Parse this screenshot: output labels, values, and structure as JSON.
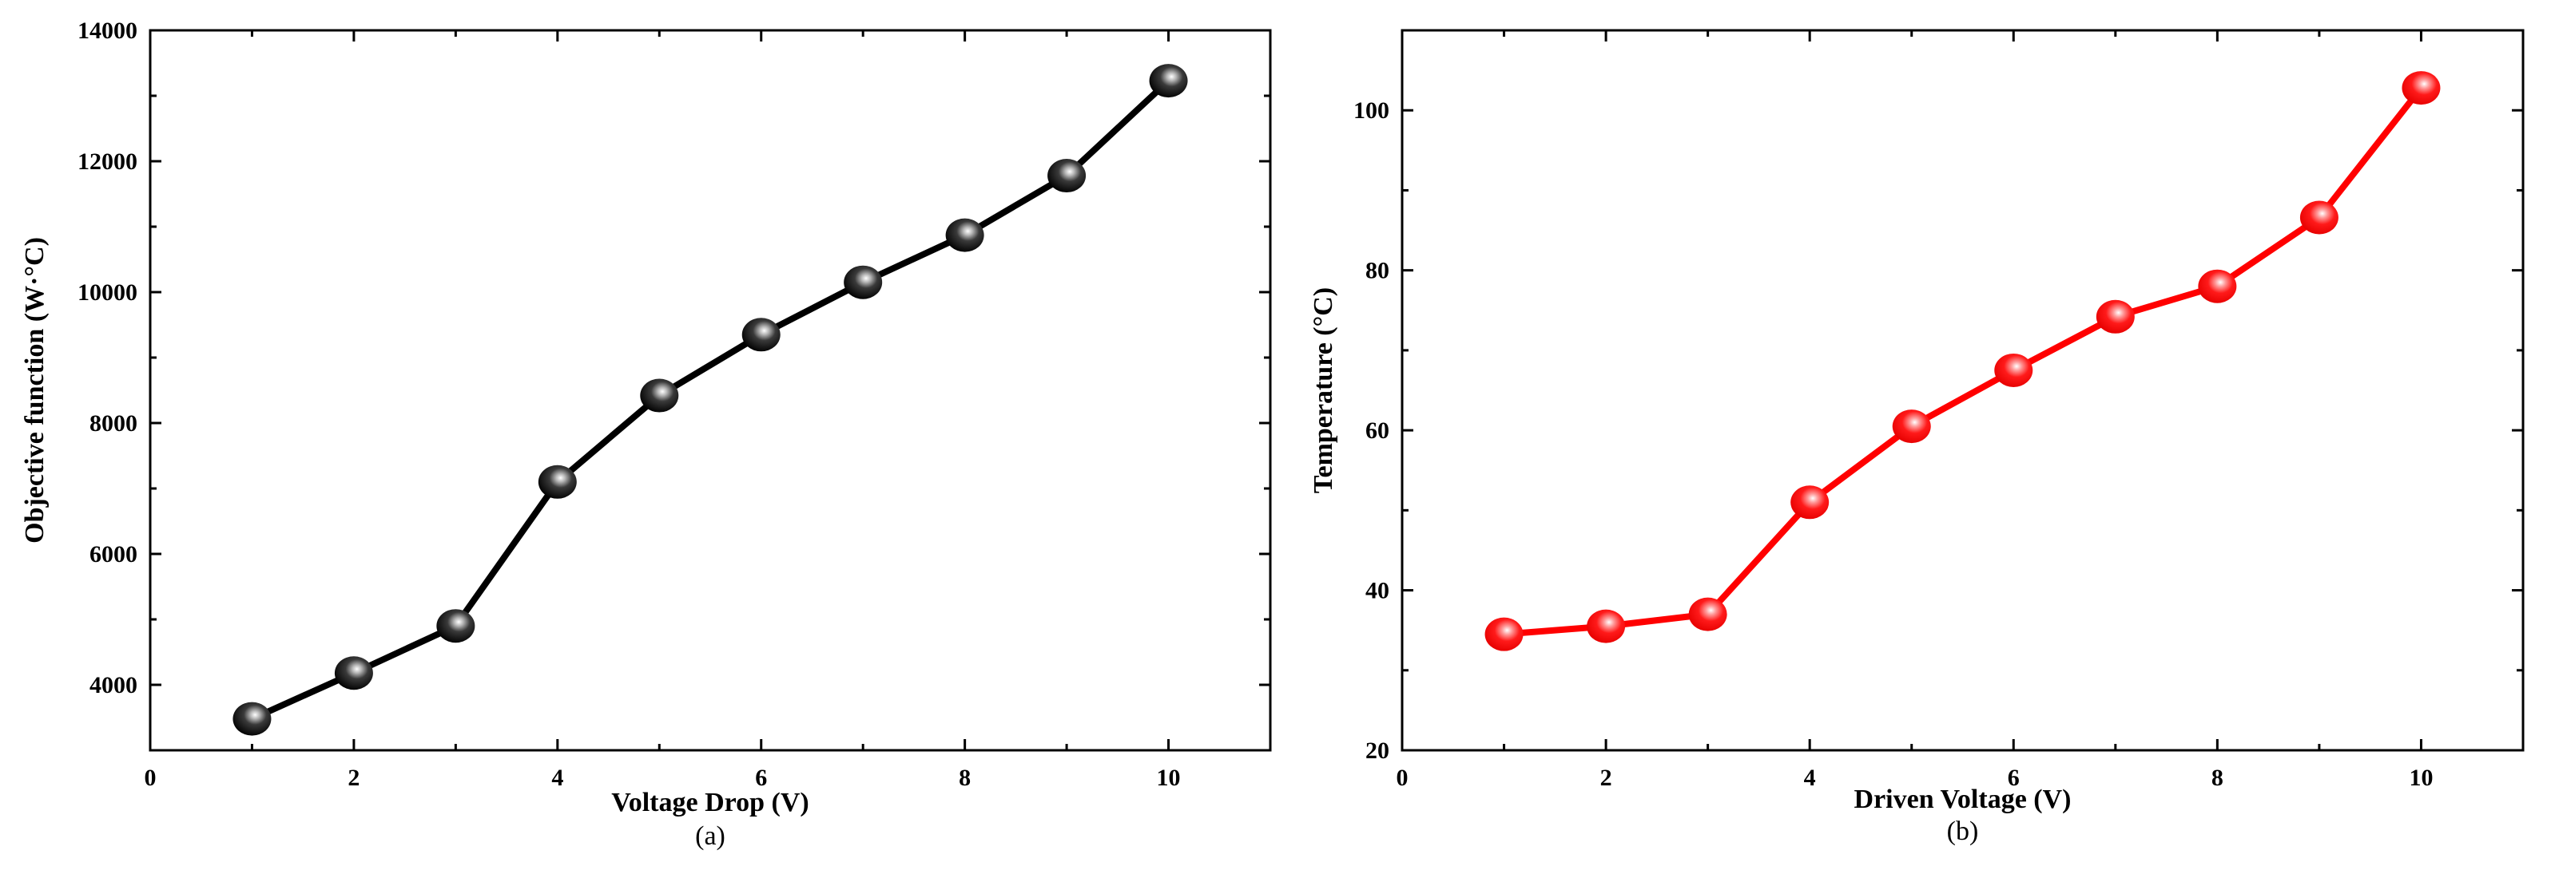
{
  "chart_data": [
    {
      "type": "line",
      "panel_label": "(a)",
      "xlabel": "Voltage Drop (V)",
      "ylabel": "Objective function (W·°C)",
      "xlim": [
        0,
        11
      ],
      "ylim": [
        3000,
        14000
      ],
      "xticks": [
        0,
        2,
        4,
        6,
        8,
        10
      ],
      "yticks": [
        4000,
        6000,
        8000,
        10000,
        12000,
        14000
      ],
      "grid": false,
      "color": "#000000",
      "series": [
        {
          "x": [
            1,
            2,
            3,
            4,
            5,
            6,
            7,
            8,
            9,
            10
          ],
          "values": [
            3480,
            4180,
            4900,
            7100,
            8420,
            9350,
            10150,
            10870,
            11780,
            13230
          ]
        }
      ]
    },
    {
      "type": "line",
      "panel_label": "(b)",
      "xlabel": "Driven Voltage (V)",
      "ylabel": "Temperature (°C)",
      "xlim": [
        0,
        11
      ],
      "ylim": [
        20,
        110
      ],
      "xticks": [
        0,
        2,
        4,
        6,
        8,
        10
      ],
      "yticks": [
        20,
        40,
        60,
        80,
        100
      ],
      "grid": false,
      "color": "#ff0000",
      "series": [
        {
          "x": [
            1,
            2,
            3,
            4,
            5,
            6,
            7,
            8,
            9,
            10
          ],
          "values": [
            34.5,
            35.5,
            37,
            51,
            60.5,
            67.5,
            74.2,
            78,
            86.6,
            102.8
          ]
        }
      ]
    }
  ]
}
